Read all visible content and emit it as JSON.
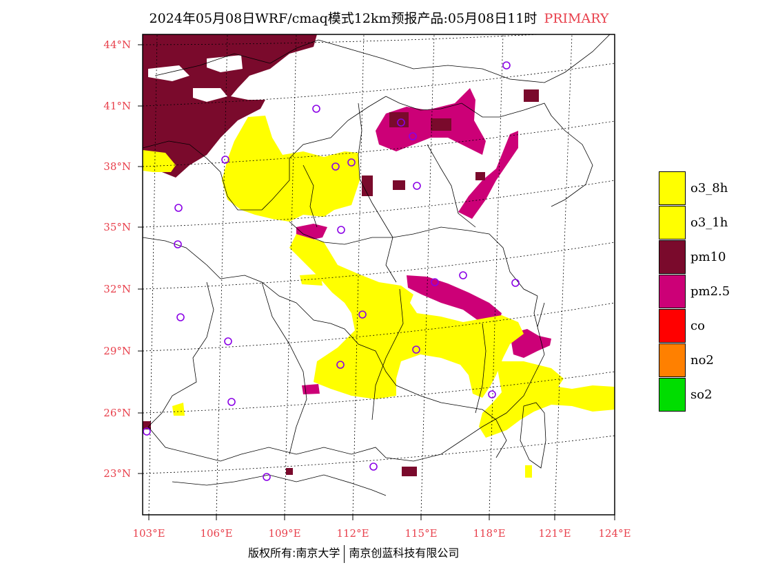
{
  "title": {
    "main": "2024年05月08日WRF/cmaq模式12km预报产品:05月08日11时",
    "tag": "PRIMARY"
  },
  "map": {
    "lat_ticks": [
      "44°N",
      "41°N",
      "38°N",
      "35°N",
      "32°N",
      "29°N",
      "26°N",
      "23°N"
    ],
    "lon_ticks": [
      "103°E",
      "106°E",
      "109°E",
      "112°E",
      "115°E",
      "118°E",
      "121°E",
      "124°E"
    ]
  },
  "legend": [
    {
      "label": "o3_8h",
      "color": "#ffff00"
    },
    {
      "label": "o3_1h",
      "color": "#ffff00"
    },
    {
      "label": "pm10",
      "color": "#7a0a2c"
    },
    {
      "label": "pm2.5",
      "color": "#cc0077"
    },
    {
      "label": "co",
      "color": "#ff0000"
    },
    {
      "label": "no2",
      "color": "#ff8000"
    },
    {
      "label": "so2",
      "color": "#00dd00"
    }
  ],
  "colors": {
    "o3": "#ffff00",
    "pm10": "#7a0a2c",
    "pm25": "#cc0077",
    "accent": "#e8404c",
    "station": "#8a00e6"
  },
  "footer": {
    "left": "版权所有:南京大学",
    "right": "南京创蓝科技有限公司"
  }
}
